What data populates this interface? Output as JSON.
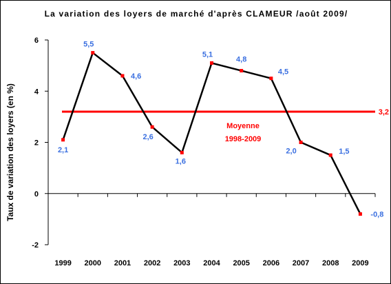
{
  "chart_data": {
    "type": "line",
    "title": "La variation des loyers de marché d'après CLAMEUR /août 2009/",
    "ylabel": "Taux de variation des loyers  (en %)",
    "xlabel": "",
    "ylim": [
      -2,
      6
    ],
    "yticks": [
      -2,
      0,
      2,
      4,
      6
    ],
    "categories": [
      "1999",
      "2000",
      "2001",
      "2002",
      "2003",
      "2004",
      "2005",
      "2006",
      "2007",
      "2008",
      "2009"
    ],
    "series": [
      {
        "values": [
          2.1,
          5.5,
          4.6,
          2.6,
          1.6,
          5.1,
          4.8,
          4.5,
          2.0,
          1.5,
          -0.8
        ],
        "labels": [
          "2,1",
          "5,5",
          "4,6",
          "2,6",
          "1,6",
          "5,1",
          "4,8",
          "4,5",
          "2,0",
          "1,5",
          "-0,8"
        ],
        "color": "#000000",
        "marker_color": "#ff0000",
        "label_color": "#3a6fe0"
      }
    ],
    "reference_line": {
      "value": 3.2,
      "label": "3,2",
      "annotation_lines": [
        "Moyenne",
        "1998-2009"
      ],
      "color": "#ff0000"
    },
    "grid": false,
    "legend": "none"
  }
}
